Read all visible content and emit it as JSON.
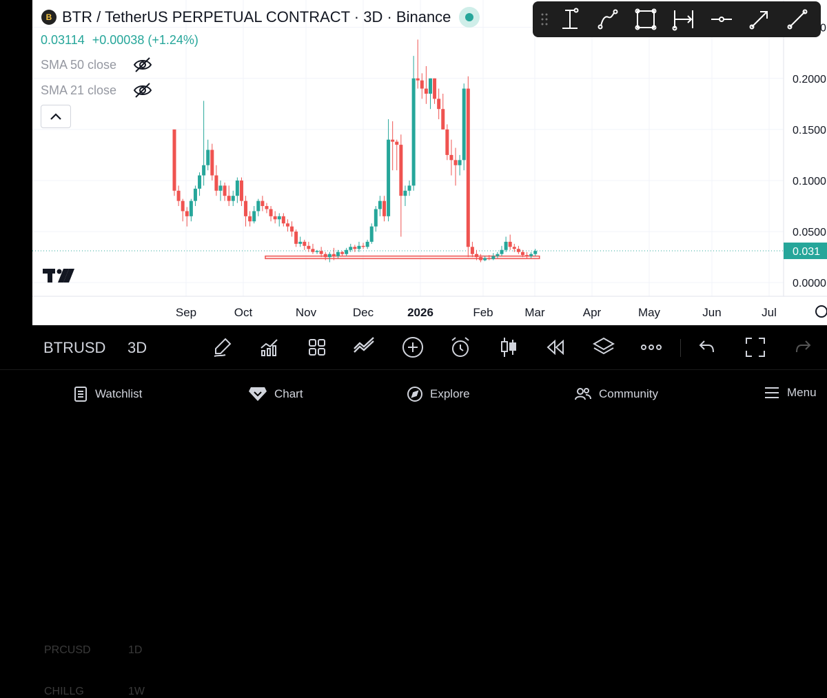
{
  "header": {
    "title": "BTR / TetherUS PERPETUAL CONTRACT · 3D · Binance",
    "logo_text": "B",
    "price": "0.03114",
    "change": "+0.00038 (+1.24%)"
  },
  "indicators": [
    {
      "label": "SMA 50 close",
      "icon": "eye-off-icon"
    },
    {
      "label": "SMA 21 close",
      "icon": "eye-off-icon"
    }
  ],
  "drawing_tools": [
    "grip-icon",
    "vertical-measure-icon",
    "path-icon",
    "rectangle-icon",
    "date-range-icon",
    "horizontal-ray-icon",
    "arrow-line-icon",
    "trend-line-icon"
  ],
  "bottom_toolbar": {
    "symbol": "BTRUSD",
    "interval": "3D",
    "ghost_above": [
      "PRCUSD",
      "1D"
    ],
    "ghost_below": [
      "CHILLG",
      "1W"
    ],
    "tools": [
      "brush-icon",
      "indicators-icon",
      "layout-icon",
      "compare-icon",
      "add-icon",
      "alert-icon",
      "candle-type-icon",
      "replay-icon",
      "layers-icon",
      "more-icon",
      "undo-icon",
      "fullscreen-icon",
      "redo-icon"
    ]
  },
  "tabs": [
    {
      "label": "Watchlist",
      "icon": "watchlist-icon"
    },
    {
      "label": "Chart",
      "icon": "chart-icon"
    },
    {
      "label": "Explore",
      "icon": "compass-icon"
    },
    {
      "label": "Community",
      "icon": "community-icon"
    },
    {
      "label": "Menu",
      "icon": "menu-icon"
    }
  ],
  "colors": {
    "up": "#26a69a",
    "down": "#ef5350",
    "text": "#131722",
    "muted": "#9598a1"
  },
  "chart_data": {
    "type": "candlestick",
    "interval": "3D",
    "x_ticks": [
      "Sep",
      "Oct",
      "Nov",
      "Dec",
      "2026",
      "Feb",
      "Mar",
      "Apr",
      "May",
      "Jun",
      "Jul"
    ],
    "y_ticks": [
      "0.2500",
      "0.2000",
      "0.1500",
      "0.1000",
      "0.0500",
      "0.0000"
    ],
    "ylim": [
      -0.01,
      0.27
    ],
    "last_price_label": "0.031",
    "last_price": 0.03114,
    "candles": [
      [
        0.15,
        0.15,
        0.085,
        0.09
      ],
      [
        0.09,
        0.095,
        0.075,
        0.08
      ],
      [
        0.08,
        0.082,
        0.06,
        0.07
      ],
      [
        0.07,
        0.074,
        0.055,
        0.065
      ],
      [
        0.065,
        0.082,
        0.06,
        0.08
      ],
      [
        0.08,
        0.095,
        0.075,
        0.092
      ],
      [
        0.092,
        0.108,
        0.085,
        0.105
      ],
      [
        0.105,
        0.178,
        0.095,
        0.115
      ],
      [
        0.115,
        0.14,
        0.11,
        0.13
      ],
      [
        0.13,
        0.136,
        0.1,
        0.105
      ],
      [
        0.105,
        0.115,
        0.085,
        0.09
      ],
      [
        0.09,
        0.1,
        0.08,
        0.095
      ],
      [
        0.095,
        0.098,
        0.08,
        0.085
      ],
      [
        0.085,
        0.095,
        0.075,
        0.08
      ],
      [
        0.08,
        0.09,
        0.075,
        0.085
      ],
      [
        0.085,
        0.103,
        0.078,
        0.1
      ],
      [
        0.1,
        0.103,
        0.075,
        0.08
      ],
      [
        0.08,
        0.085,
        0.055,
        0.065
      ],
      [
        0.065,
        0.07,
        0.055,
        0.06
      ],
      [
        0.06,
        0.075,
        0.058,
        0.07
      ],
      [
        0.07,
        0.082,
        0.065,
        0.08
      ],
      [
        0.08,
        0.085,
        0.07,
        0.075
      ],
      [
        0.075,
        0.078,
        0.068,
        0.072
      ],
      [
        0.072,
        0.075,
        0.06,
        0.065
      ],
      [
        0.065,
        0.07,
        0.058,
        0.062
      ],
      [
        0.062,
        0.068,
        0.055,
        0.065
      ],
      [
        0.065,
        0.068,
        0.055,
        0.058
      ],
      [
        0.058,
        0.062,
        0.05,
        0.055
      ],
      [
        0.055,
        0.06,
        0.045,
        0.05
      ],
      [
        0.05,
        0.052,
        0.035,
        0.038
      ],
      [
        0.038,
        0.045,
        0.035,
        0.04
      ],
      [
        0.04,
        0.042,
        0.032,
        0.036
      ],
      [
        0.036,
        0.04,
        0.03,
        0.033
      ],
      [
        0.033,
        0.038,
        0.028,
        0.03
      ],
      [
        0.03,
        0.032,
        0.028,
        0.031
      ],
      [
        0.031,
        0.035,
        0.025,
        0.028
      ],
      [
        0.028,
        0.03,
        0.022,
        0.025
      ],
      [
        0.025,
        0.03,
        0.02,
        0.028
      ],
      [
        0.028,
        0.034,
        0.022,
        0.026
      ],
      [
        0.026,
        0.032,
        0.024,
        0.03
      ],
      [
        0.03,
        0.031,
        0.026,
        0.028
      ],
      [
        0.028,
        0.034,
        0.026,
        0.032
      ],
      [
        0.032,
        0.038,
        0.03,
        0.035
      ],
      [
        0.035,
        0.037,
        0.03,
        0.033
      ],
      [
        0.033,
        0.04,
        0.03,
        0.036
      ],
      [
        0.036,
        0.039,
        0.033,
        0.035
      ],
      [
        0.035,
        0.042,
        0.033,
        0.04
      ],
      [
        0.04,
        0.058,
        0.038,
        0.055
      ],
      [
        0.055,
        0.075,
        0.05,
        0.072
      ],
      [
        0.072,
        0.085,
        0.065,
        0.08
      ],
      [
        0.08,
        0.085,
        0.06,
        0.065
      ],
      [
        0.065,
        0.16,
        0.06,
        0.14
      ],
      [
        0.14,
        0.158,
        0.11,
        0.138
      ],
      [
        0.138,
        0.14,
        0.11,
        0.135
      ],
      [
        0.135,
        0.145,
        0.045,
        0.085
      ],
      [
        0.085,
        0.095,
        0.075,
        0.09
      ],
      [
        0.09,
        0.1,
        0.085,
        0.095
      ],
      [
        0.095,
        0.222,
        0.09,
        0.2
      ],
      [
        0.2,
        0.238,
        0.19,
        0.198
      ],
      [
        0.198,
        0.205,
        0.18,
        0.19
      ],
      [
        0.19,
        0.212,
        0.175,
        0.185
      ],
      [
        0.185,
        0.2,
        0.17,
        0.2
      ],
      [
        0.2,
        0.2,
        0.175,
        0.18
      ],
      [
        0.18,
        0.19,
        0.16,
        0.17
      ],
      [
        0.17,
        0.185,
        0.15,
        0.15
      ],
      [
        0.15,
        0.155,
        0.12,
        0.125
      ],
      [
        0.125,
        0.14,
        0.105,
        0.12
      ],
      [
        0.12,
        0.132,
        0.095,
        0.115
      ],
      [
        0.115,
        0.125,
        0.105,
        0.12
      ],
      [
        0.12,
        0.195,
        0.11,
        0.19
      ],
      [
        0.19,
        0.202,
        0.025,
        0.035
      ],
      [
        0.035,
        0.04,
        0.025,
        0.028
      ],
      [
        0.028,
        0.032,
        0.022,
        0.025
      ],
      [
        0.025,
        0.028,
        0.02,
        0.022
      ],
      [
        0.022,
        0.026,
        0.021,
        0.024
      ],
      [
        0.024,
        0.027,
        0.022,
        0.023
      ],
      [
        0.023,
        0.029,
        0.022,
        0.026
      ],
      [
        0.026,
        0.03,
        0.024,
        0.028
      ],
      [
        0.028,
        0.036,
        0.026,
        0.032
      ],
      [
        0.032,
        0.045,
        0.03,
        0.04
      ],
      [
        0.04,
        0.047,
        0.032,
        0.035
      ],
      [
        0.035,
        0.038,
        0.03,
        0.033
      ],
      [
        0.033,
        0.036,
        0.028,
        0.03
      ],
      [
        0.03,
        0.032,
        0.025,
        0.027
      ],
      [
        0.027,
        0.03,
        0.024,
        0.026
      ],
      [
        0.026,
        0.03,
        0.024,
        0.028
      ],
      [
        0.028,
        0.033,
        0.026,
        0.031
      ]
    ],
    "annotation": {
      "type": "rectangle",
      "y_low": 0.0235,
      "y_high": 0.026,
      "from_candle": 22,
      "to_candle": 86
    }
  }
}
